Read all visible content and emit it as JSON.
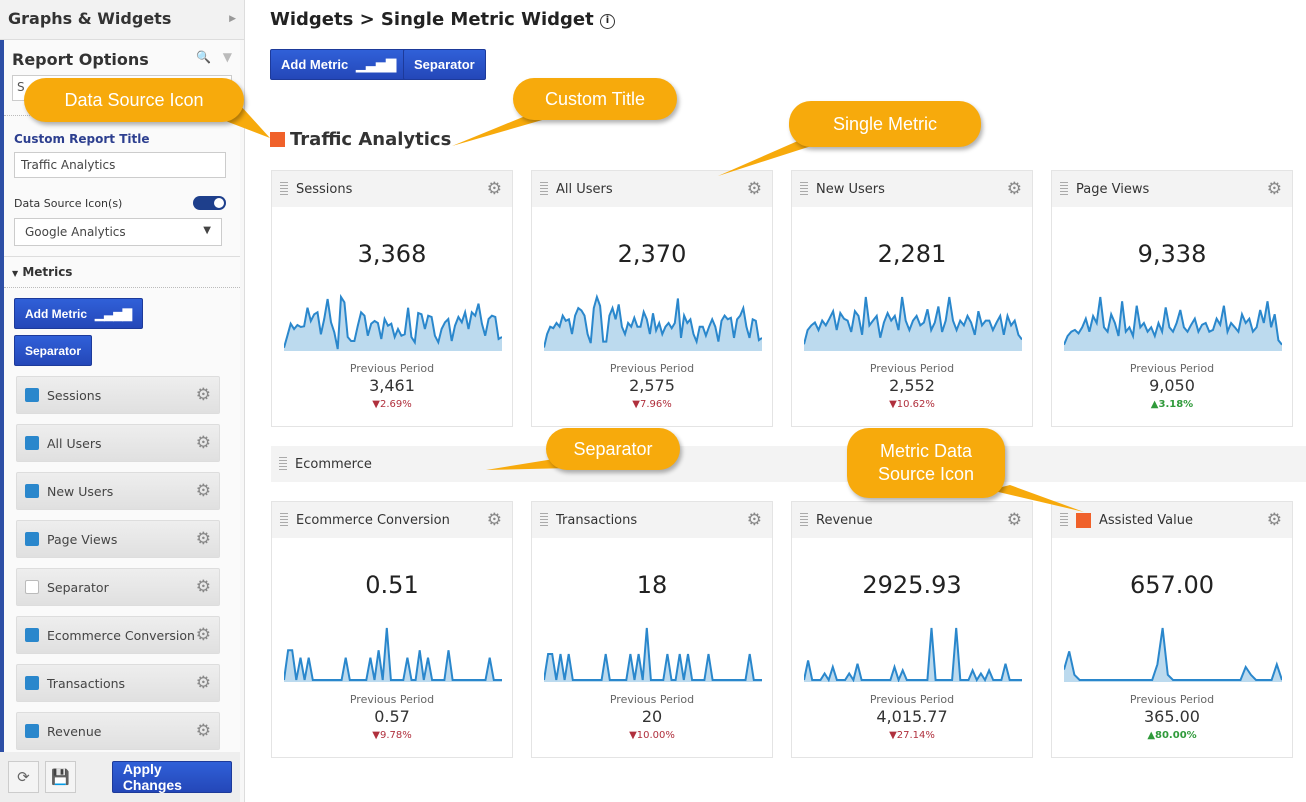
{
  "sidebar": {
    "header": "Graphs & Widgets",
    "report_options": "Report Options",
    "search_value": "S",
    "custom_title_label": "Custom Report Title",
    "custom_title_value": "Traffic Analytics",
    "ds_label": "Data Source Icon(s)",
    "ds_toggle_on": true,
    "ds_select": "Google Analytics",
    "metrics_header": "Metrics",
    "add_metric": "Add Metric",
    "separator": "Separator",
    "items": [
      {
        "label": "Sessions",
        "checked": true
      },
      {
        "label": "All Users",
        "checked": true
      },
      {
        "label": "New Users",
        "checked": true
      },
      {
        "label": "Page Views",
        "checked": true
      },
      {
        "label": "Separator",
        "checked": false
      },
      {
        "label": "Ecommerce Conversion",
        "checked": true
      },
      {
        "label": "Transactions",
        "checked": true
      },
      {
        "label": "Revenue",
        "checked": true
      }
    ],
    "apply": "Apply Changes"
  },
  "main": {
    "title": "Widgets > Single Metric Widget",
    "add_metric": "Add Metric",
    "separator": "Separator",
    "report_title": "Traffic Analytics",
    "separator_label": "Ecommerce",
    "previous_label": "Previous Period",
    "cards": [
      {
        "title": "Sessions",
        "value": "3,368",
        "prev": "3,461",
        "change": "2.69%",
        "dir": "down",
        "spark": [
          2,
          20,
          38,
          30,
          36,
          33,
          34,
          62,
          42,
          52,
          55,
          22,
          45,
          75,
          40,
          25,
          0,
          78,
          70,
          18,
          12,
          12,
          35,
          55,
          50,
          20,
          38,
          42,
          39,
          15,
          45,
          35,
          38,
          18,
          30,
          20,
          22,
          62,
          18,
          10,
          54,
          52,
          30,
          50,
          48,
          20,
          10,
          30,
          40,
          45,
          12,
          35,
          48,
          40,
          55,
          30,
          55,
          50,
          68,
          38,
          20,
          45,
          50,
          48,
          15,
          18
        ]
      },
      {
        "title": "All Users",
        "value": "2,370",
        "prev": "2,575",
        "change": "7.96%",
        "dir": "down",
        "spark": [
          2,
          20,
          30,
          28,
          35,
          30,
          45,
          38,
          40,
          20,
          45,
          55,
          52,
          45,
          20,
          8,
          55,
          70,
          58,
          10,
          10,
          45,
          55,
          40,
          60,
          30,
          20,
          35,
          30,
          42,
          30,
          30,
          50,
          40,
          20,
          48,
          25,
          35,
          20,
          30,
          35,
          28,
          35,
          68,
          15,
          45,
          35,
          40,
          20,
          10,
          30,
          30,
          18,
          30,
          40,
          30,
          10,
          38,
          45,
          40,
          42,
          15,
          40,
          45,
          55,
          30,
          15,
          40,
          38,
          12,
          15
        ]
      },
      {
        "title": "New Users",
        "value": "2,281",
        "prev": "2,552",
        "change": "10.62%",
        "dir": "down",
        "spark": [
          5,
          20,
          25,
          28,
          20,
          30,
          25,
          32,
          40,
          20,
          38,
          32,
          30,
          18,
          40,
          35,
          15,
          55,
          25,
          30,
          35,
          12,
          28,
          38,
          30,
          35,
          20,
          55,
          30,
          20,
          30,
          35,
          25,
          28,
          42,
          20,
          28,
          45,
          18,
          30,
          55,
          30,
          20,
          30,
          25,
          35,
          28,
          15,
          40,
          25,
          30,
          30,
          20,
          28,
          35,
          15,
          35,
          25,
          30,
          15,
          10
        ]
      },
      {
        "title": "Page Views",
        "value": "9,338",
        "prev": "9,050",
        "change": "3.18%",
        "dir": "up",
        "spark": [
          5,
          15,
          20,
          22,
          18,
          25,
          35,
          20,
          38,
          30,
          60,
          25,
          20,
          40,
          30,
          15,
          55,
          20,
          25,
          15,
          50,
          25,
          30,
          20,
          25,
          15,
          30,
          20,
          48,
          25,
          20,
          30,
          45,
          25,
          20,
          28,
          35,
          20,
          28,
          30,
          20,
          22,
          35,
          28,
          50,
          20,
          30,
          25,
          20,
          40,
          30,
          35,
          20,
          25,
          45,
          30,
          55,
          25,
          40,
          10,
          5
        ]
      },
      {
        "title": "Ecommerce Conversion",
        "value": "0.51",
        "prev": "0.57",
        "change": "9.78%",
        "dir": "down",
        "spark": [
          0,
          40,
          40,
          0,
          30,
          0,
          30,
          0,
          0,
          0,
          0,
          0,
          0,
          0,
          0,
          30,
          0,
          0,
          0,
          0,
          0,
          30,
          0,
          40,
          0,
          70,
          0,
          0,
          0,
          0,
          30,
          0,
          0,
          40,
          0,
          30,
          0,
          0,
          0,
          0,
          40,
          0,
          0,
          0,
          0,
          0,
          0,
          0,
          0,
          0,
          30,
          0,
          0,
          0
        ]
      },
      {
        "title": "Transactions",
        "value": "18",
        "prev": "20",
        "change": "10.00%",
        "dir": "down",
        "spark": [
          0,
          30,
          30,
          0,
          30,
          0,
          30,
          0,
          0,
          0,
          0,
          0,
          0,
          0,
          0,
          30,
          0,
          0,
          0,
          0,
          0,
          30,
          0,
          30,
          0,
          60,
          0,
          0,
          0,
          0,
          30,
          0,
          0,
          30,
          0,
          30,
          0,
          0,
          0,
          0,
          30,
          0,
          0,
          0,
          0,
          0,
          0,
          0,
          0,
          0,
          30,
          0,
          0,
          0
        ]
      },
      {
        "title": "Revenue",
        "value": "2925.93",
        "prev": "4,015.77",
        "change": "27.14%",
        "dir": "down",
        "spark": [
          0,
          30,
          0,
          0,
          0,
          10,
          0,
          20,
          0,
          0,
          0,
          10,
          0,
          25,
          0,
          0,
          0,
          0,
          0,
          0,
          0,
          0,
          20,
          0,
          15,
          0,
          0,
          0,
          0,
          0,
          0,
          80,
          0,
          0,
          0,
          0,
          0,
          80,
          0,
          0,
          0,
          15,
          0,
          10,
          0,
          15,
          0,
          0,
          0,
          25,
          0,
          0,
          0,
          0
        ]
      },
      {
        "title": "Assisted Value",
        "value": "657.00",
        "prev": "365.00",
        "change": "80.00%",
        "dir": "up",
        "ds_icon": true,
        "spark": [
          20,
          55,
          10,
          0,
          0,
          0,
          0,
          0,
          0,
          0,
          0,
          0,
          0,
          0,
          0,
          0,
          0,
          0,
          30,
          100,
          10,
          0,
          0,
          0,
          0,
          0,
          0,
          0,
          0,
          0,
          0,
          0,
          0,
          0,
          0,
          25,
          10,
          0,
          0,
          0,
          0,
          30,
          0
        ]
      }
    ]
  },
  "callouts": [
    "Data Source Icon",
    "Custom Title",
    "Single Metric",
    "Separator",
    "Metric Data\nSource Icon"
  ],
  "colors": {
    "accent": "#2447b8",
    "callout": "#f7aa0c",
    "spark": "#2a87cc",
    "down": "#b0303d",
    "up": "#2f9a3a"
  }
}
